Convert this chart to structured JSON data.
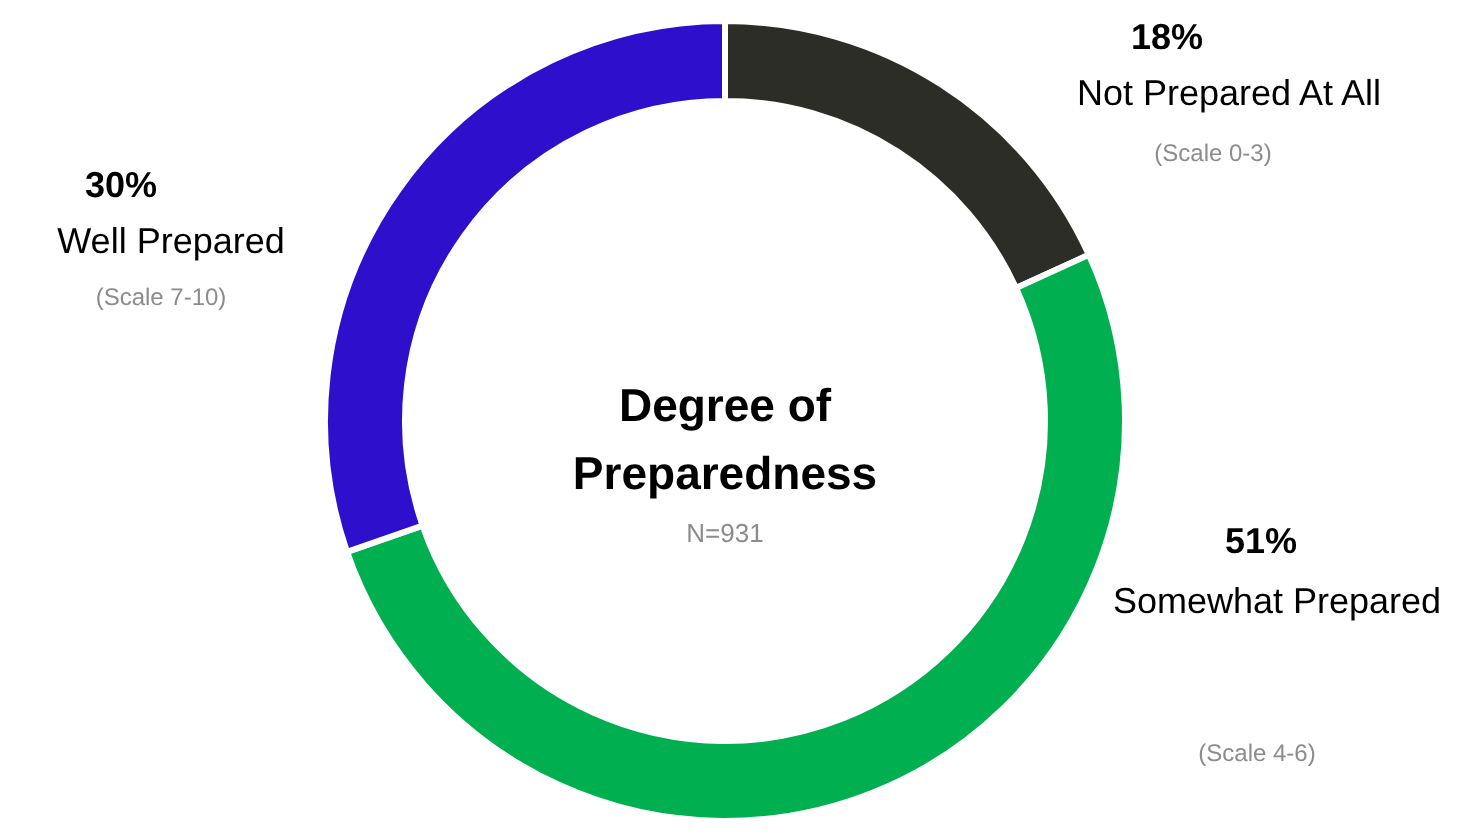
{
  "chart_data": {
    "type": "donut",
    "title": "Degree of Preparedness",
    "subtitle": "N=931",
    "categories": [
      "Not Prepared At All",
      "Somewhat Prepared",
      "Well Prepared"
    ],
    "values": [
      18,
      51,
      30
    ],
    "value_labels": [
      "18%",
      "51%",
      "30%"
    ],
    "colors": [
      "#2d2d27",
      "#00b050",
      "#2e10cc"
    ],
    "annotations": [
      "(Scale 0-3)",
      "(Scale 4-6)",
      "(Scale 7-10)"
    ]
  }
}
